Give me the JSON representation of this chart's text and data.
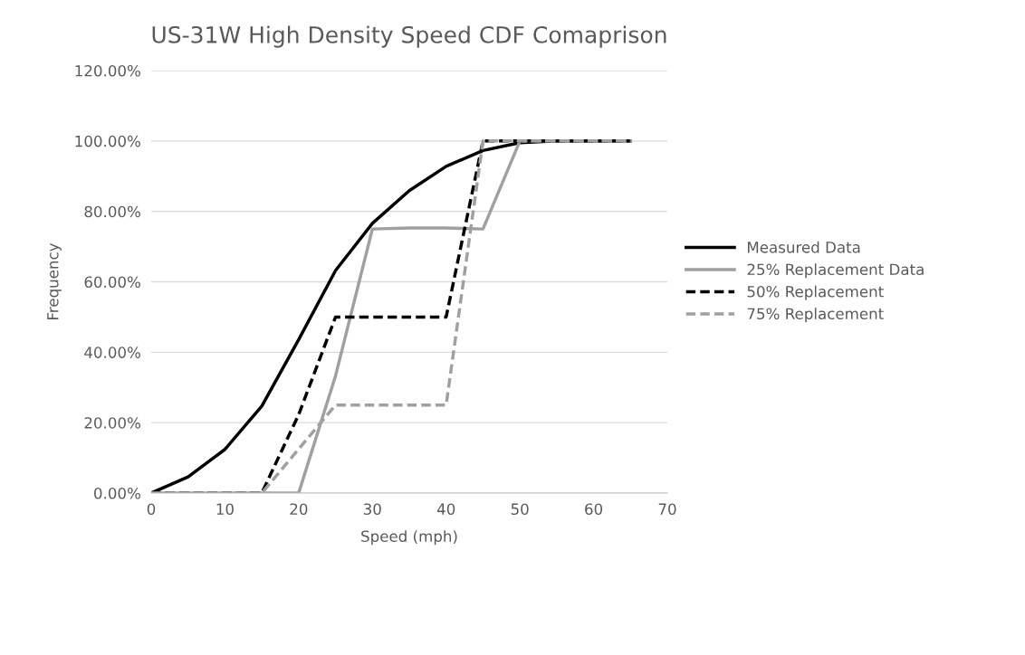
{
  "chart_data": {
    "type": "line",
    "title": "US-31W High Density Speed CDF Comaprison",
    "xlabel": "Speed (mph)",
    "ylabel": "Frequency",
    "x": [
      0,
      5,
      10,
      15,
      20,
      25,
      30,
      35,
      40,
      45,
      50,
      55,
      60,
      65
    ],
    "series": [
      {
        "name": "Measured Data",
        "color": "#000000",
        "line_style": "solid",
        "values": [
          0,
          4.6,
          12.4,
          24.7,
          43.6,
          63.2,
          76.6,
          85.9,
          92.8,
          97.3,
          99.5,
          100,
          100,
          100
        ]
      },
      {
        "name": "25% Replacement Data",
        "color": "#a0a0a0",
        "line_style": "solid",
        "values": [
          0,
          0,
          0,
          0,
          0,
          33.3,
          75,
          75.3,
          75.3,
          75,
          100,
          100,
          100,
          100
        ]
      },
      {
        "name": "50% Replacement",
        "color": "#000000",
        "line_style": "dashed",
        "values": [
          0,
          0,
          0,
          0,
          22.3,
          50,
          50,
          50,
          50,
          100,
          100,
          100,
          100,
          100
        ]
      },
      {
        "name": "75% Replacement",
        "color": "#a0a0a0",
        "line_style": "dashed",
        "values": [
          0,
          0,
          0,
          0,
          12.5,
          25,
          25,
          25,
          25,
          100,
          100,
          100,
          100,
          100
        ]
      }
    ],
    "xlim": [
      0,
      70
    ],
    "xticks": [
      0,
      10,
      20,
      30,
      40,
      50,
      60,
      70
    ],
    "ylim": [
      0,
      120
    ],
    "yticks": [
      {
        "value": 0,
        "label": "0.00%"
      },
      {
        "value": 20,
        "label": "20.00%"
      },
      {
        "value": 40,
        "label": "40.00%"
      },
      {
        "value": 60,
        "label": "60.00%"
      },
      {
        "value": 80,
        "label": "80.00%"
      },
      {
        "value": 100,
        "label": "100.00%"
      },
      {
        "value": 120,
        "label": "120.00%"
      }
    ],
    "grid": "y",
    "legend": "right",
    "marker": "none"
  }
}
